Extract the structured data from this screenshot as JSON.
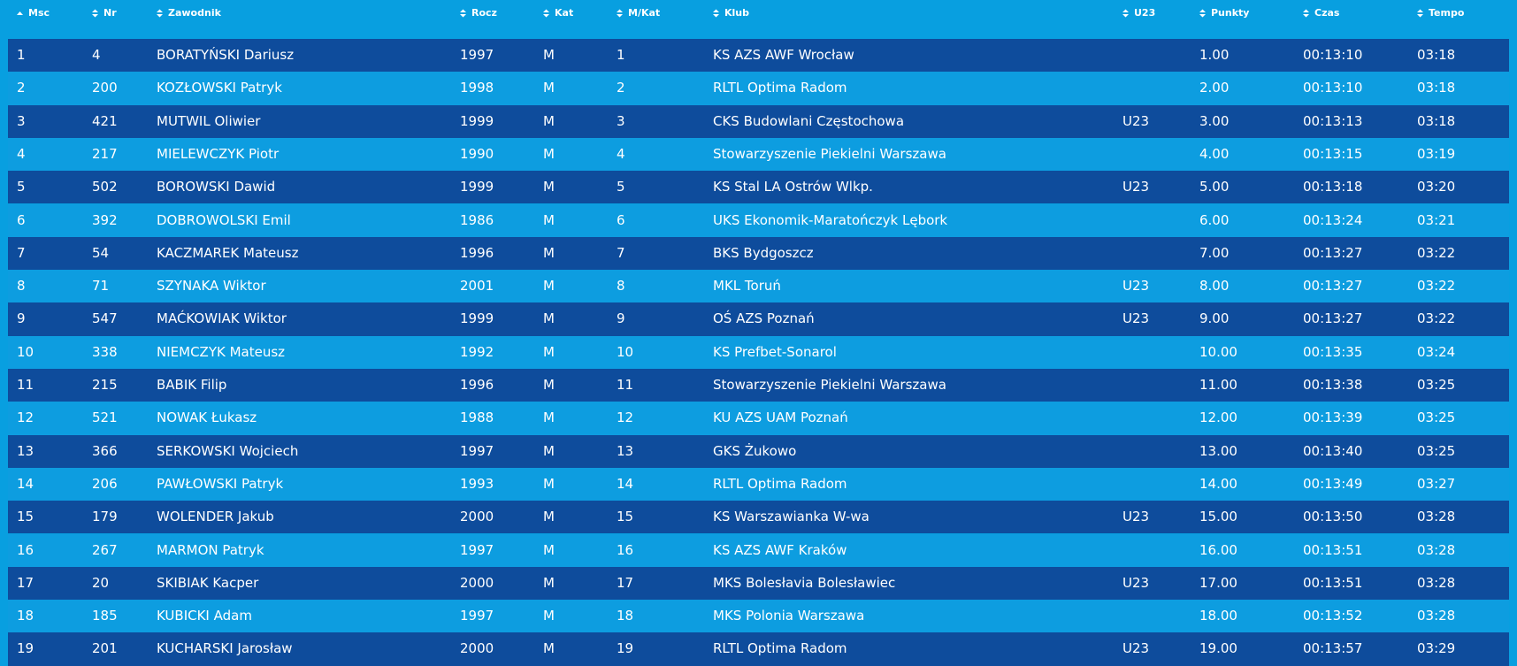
{
  "table": {
    "columns": [
      "Msc",
      "Nr",
      "Zawodnik",
      "Rocz",
      "Kat",
      "M/Kat",
      "Klub",
      "U23",
      "Punkty",
      "Czas",
      "Tempo"
    ],
    "rows": [
      [
        "1",
        "4",
        "BORATYŃSKI Dariusz",
        "1997",
        "M",
        "1",
        "KS AZS AWF Wrocław",
        null,
        "1.00",
        "00:13:10",
        "03:18"
      ],
      [
        "2",
        "200",
        "KOZŁOWSKI Patryk",
        "1998",
        "M",
        "2",
        "RLTL Optima Radom",
        null,
        "2.00",
        "00:13:10",
        "03:18"
      ],
      [
        "3",
        "421",
        "MUTWIL Oliwier",
        "1999",
        "M",
        "3",
        "CKS Budowlani Częstochowa",
        "U23",
        "3.00",
        "00:13:13",
        "03:18"
      ],
      [
        "4",
        "217",
        "MIELEWCZYK Piotr",
        "1990",
        "M",
        "4",
        "Stowarzyszenie Piekielni Warszawa",
        null,
        "4.00",
        "00:13:15",
        "03:19"
      ],
      [
        "5",
        "502",
        "BOROWSKI Dawid",
        "1999",
        "M",
        "5",
        "KS Stal LA Ostrów Wlkp.",
        "U23",
        "5.00",
        "00:13:18",
        "03:20"
      ],
      [
        "6",
        "392",
        "DOBROWOLSKI Emil",
        "1986",
        "M",
        "6",
        "UKS Ekonomik-Maratończyk Lębork",
        null,
        "6.00",
        "00:13:24",
        "03:21"
      ],
      [
        "7",
        "54",
        "KACZMAREK Mateusz",
        "1996",
        "M",
        "7",
        "BKS Bydgoszcz",
        null,
        "7.00",
        "00:13:27",
        "03:22"
      ],
      [
        "8",
        "71",
        "SZYNAKA Wiktor",
        "2001",
        "M",
        "8",
        "MKL Toruń",
        "U23",
        "8.00",
        "00:13:27",
        "03:22"
      ],
      [
        "9",
        "547",
        "MAĆKOWIAK Wiktor",
        "1999",
        "M",
        "9",
        "OŚ AZS Poznań",
        "U23",
        "9.00",
        "00:13:27",
        "03:22"
      ],
      [
        "10",
        "338",
        "NIEMCZYK Mateusz",
        "1992",
        "M",
        "10",
        "KS Prefbet-Sonarol",
        null,
        "10.00",
        "00:13:35",
        "03:24"
      ],
      [
        "11",
        "215",
        "BABIK Filip",
        "1996",
        "M",
        "11",
        "Stowarzyszenie Piekielni Warszawa",
        null,
        "11.00",
        "00:13:38",
        "03:25"
      ],
      [
        "12",
        "521",
        "NOWAK Łukasz",
        "1988",
        "M",
        "12",
        "KU AZS UAM Poznań",
        null,
        "12.00",
        "00:13:39",
        "03:25"
      ],
      [
        "13",
        "366",
        "SERKOWSKI Wojciech",
        "1997",
        "M",
        "13",
        "GKS Żukowo",
        null,
        "13.00",
        "00:13:40",
        "03:25"
      ],
      [
        "14",
        "206",
        "PAWŁOWSKI Patryk",
        "1993",
        "M",
        "14",
        "RLTL Optima Radom",
        null,
        "14.00",
        "00:13:49",
        "03:27"
      ],
      [
        "15",
        "179",
        "WOLENDER Jakub",
        "2000",
        "M",
        "15",
        "KS Warszawianka W-wa",
        "U23",
        "15.00",
        "00:13:50",
        "03:28"
      ],
      [
        "16",
        "267",
        "MARMON Patryk",
        "1997",
        "M",
        "16",
        "KS AZS AWF Kraków",
        null,
        "16.00",
        "00:13:51",
        "03:28"
      ],
      [
        "17",
        "20",
        "SKIBIAK Kacper",
        "2000",
        "M",
        "17",
        "MKS Bolesłavia Bolesławiec",
        "U23",
        "17.00",
        "00:13:51",
        "03:28"
      ],
      [
        "18",
        "185",
        "KUBICKI Adam",
        "1997",
        "M",
        "18",
        "MKS Polonia Warszawa",
        null,
        "18.00",
        "00:13:52",
        "03:28"
      ],
      [
        "19",
        "201",
        "KUCHARSKI Jarosław",
        "2000",
        "M",
        "19",
        "RLTL Optima Radom",
        "U23",
        "19.00",
        "00:13:57",
        "03:29"
      ]
    ]
  }
}
